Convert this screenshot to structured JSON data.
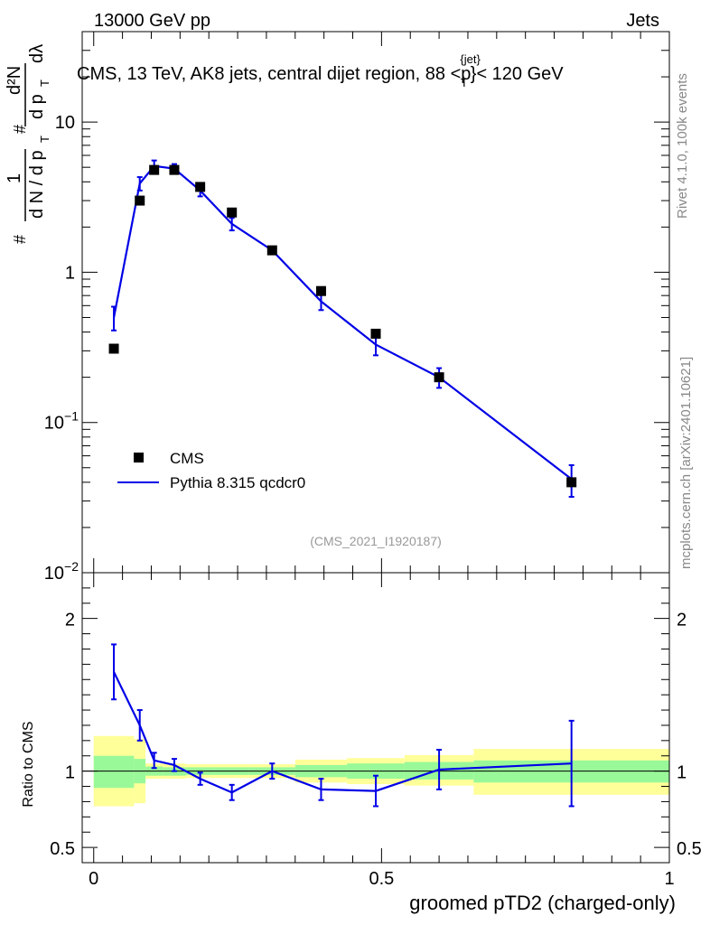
{
  "header": {
    "left": "13000 GeV pp",
    "right": "Jets"
  },
  "side": {
    "rivet": "Rivet 4.1.0,  100k events",
    "mcplots": "mcplots.cern.ch [arXiv:2401.10621]"
  },
  "colors": {
    "data": "#000000",
    "mc": "#0000e6",
    "band_inner": "#99f999",
    "band_outer": "#ffff99"
  },
  "chart_data": [
    {
      "type": "scatter",
      "title": "CMS, 13 TeV, AK8 jets, central dijet region, 88 <p_T^{jet}< 120 GeV",
      "title_parts": {
        "main": "CMS, 13 TeV, AK8 jets, central dijet region, 88 <p",
        "sup": "{jet}",
        "sub": "T",
        "tail": "}< 120 GeV"
      },
      "analysis_label": "(CMS_2021_I1920187)",
      "ylabel": {
        "hash1": "#",
        "frac_num": "1",
        "frac_den": "d N / d p",
        "den_sub": "T",
        "hash2": "#",
        "d2n": "d²N",
        "dpt": "d p",
        "dpt_sub": "T",
        "dl": "dλ"
      },
      "yscale": "log",
      "ylim": [
        0.01,
        40
      ],
      "xlim": [
        -0.02,
        1.0
      ],
      "yticks": [
        {
          "value": 0.01,
          "label": "10",
          "exp": "−2"
        },
        {
          "value": 0.1,
          "label": "10",
          "exp": "−1"
        },
        {
          "value": 1,
          "label": "1",
          "exp": ""
        },
        {
          "value": 10,
          "label": "10",
          "exp": ""
        }
      ],
      "legend": {
        "position": "lower-left",
        "entries": [
          "CMS",
          "Pythia 8.315 qcdcr0"
        ]
      },
      "series": [
        {
          "name": "CMS",
          "style": "markers",
          "x": [
            0.035,
            0.08,
            0.105,
            0.14,
            0.185,
            0.24,
            0.31,
            0.395,
            0.49,
            0.6,
            0.83
          ],
          "y": [
            0.31,
            3.0,
            4.8,
            4.8,
            3.7,
            2.5,
            1.4,
            0.75,
            0.39,
            0.2,
            0.04
          ]
        },
        {
          "name": "Pythia 8.315 qcdcr0",
          "style": "line",
          "x": [
            0.035,
            0.08,
            0.105,
            0.14,
            0.185,
            0.24,
            0.31,
            0.395,
            0.49,
            0.6,
            0.83
          ],
          "y": [
            0.5,
            3.9,
            5.1,
            4.9,
            3.5,
            2.1,
            1.4,
            0.64,
            0.33,
            0.2,
            0.042
          ],
          "yerr_lo": [
            0.09,
            0.4,
            0.45,
            0.35,
            0.3,
            0.2,
            0.08,
            0.08,
            0.05,
            0.03,
            0.01
          ],
          "yerr_hi": [
            0.09,
            0.4,
            0.45,
            0.35,
            0.3,
            0.2,
            0.08,
            0.08,
            0.05,
            0.03,
            0.01
          ]
        }
      ]
    },
    {
      "type": "line",
      "ylabel": "Ratio to CMS",
      "xlabel": "groomed pTD2 (charged-only)",
      "ylim": [
        0.4,
        2.3
      ],
      "xlim": [
        -0.02,
        1.0
      ],
      "yticks": [
        {
          "value": 0.5,
          "label": "0.5"
        },
        {
          "value": 1,
          "label": "1"
        },
        {
          "value": 2,
          "label": "2"
        }
      ],
      "xticks": [
        {
          "value": 0,
          "label": "0"
        },
        {
          "value": 0.5,
          "label": "0.5"
        },
        {
          "value": 1,
          "label": "1"
        }
      ],
      "bands": {
        "edges": [
          0.0,
          0.07,
          0.09,
          0.12,
          0.16,
          0.21,
          0.27,
          0.35,
          0.44,
          0.54,
          0.66,
          1.0
        ],
        "inner_lo": [
          0.89,
          0.92,
          0.97,
          0.97,
          0.975,
          0.975,
          0.975,
          0.96,
          0.95,
          0.945,
          0.925
        ],
        "inner_hi": [
          1.1,
          1.08,
          1.03,
          1.025,
          1.025,
          1.025,
          1.025,
          1.04,
          1.05,
          1.06,
          1.07
        ],
        "outer_lo": [
          0.77,
          0.79,
          0.95,
          0.95,
          0.955,
          0.955,
          0.955,
          0.925,
          0.915,
          0.905,
          0.845
        ],
        "outer_hi": [
          1.23,
          1.21,
          1.05,
          1.05,
          1.045,
          1.045,
          1.045,
          1.075,
          1.085,
          1.105,
          1.145
        ]
      },
      "series": [
        {
          "name": "Pythia 8.315 qcdcr0 / CMS",
          "x": [
            0.035,
            0.08,
            0.105,
            0.14,
            0.185,
            0.24,
            0.31,
            0.395,
            0.49,
            0.6,
            0.83
          ],
          "y": [
            1.65,
            1.3,
            1.07,
            1.04,
            0.95,
            0.86,
            1.0,
            0.88,
            0.87,
            1.01,
            1.05
          ],
          "yerr_lo": [
            0.18,
            0.1,
            0.05,
            0.04,
            0.04,
            0.05,
            0.05,
            0.07,
            0.1,
            0.13,
            0.28
          ],
          "yerr_hi": [
            0.18,
            0.1,
            0.05,
            0.04,
            0.04,
            0.05,
            0.05,
            0.07,
            0.1,
            0.13,
            0.28
          ]
        }
      ]
    }
  ]
}
